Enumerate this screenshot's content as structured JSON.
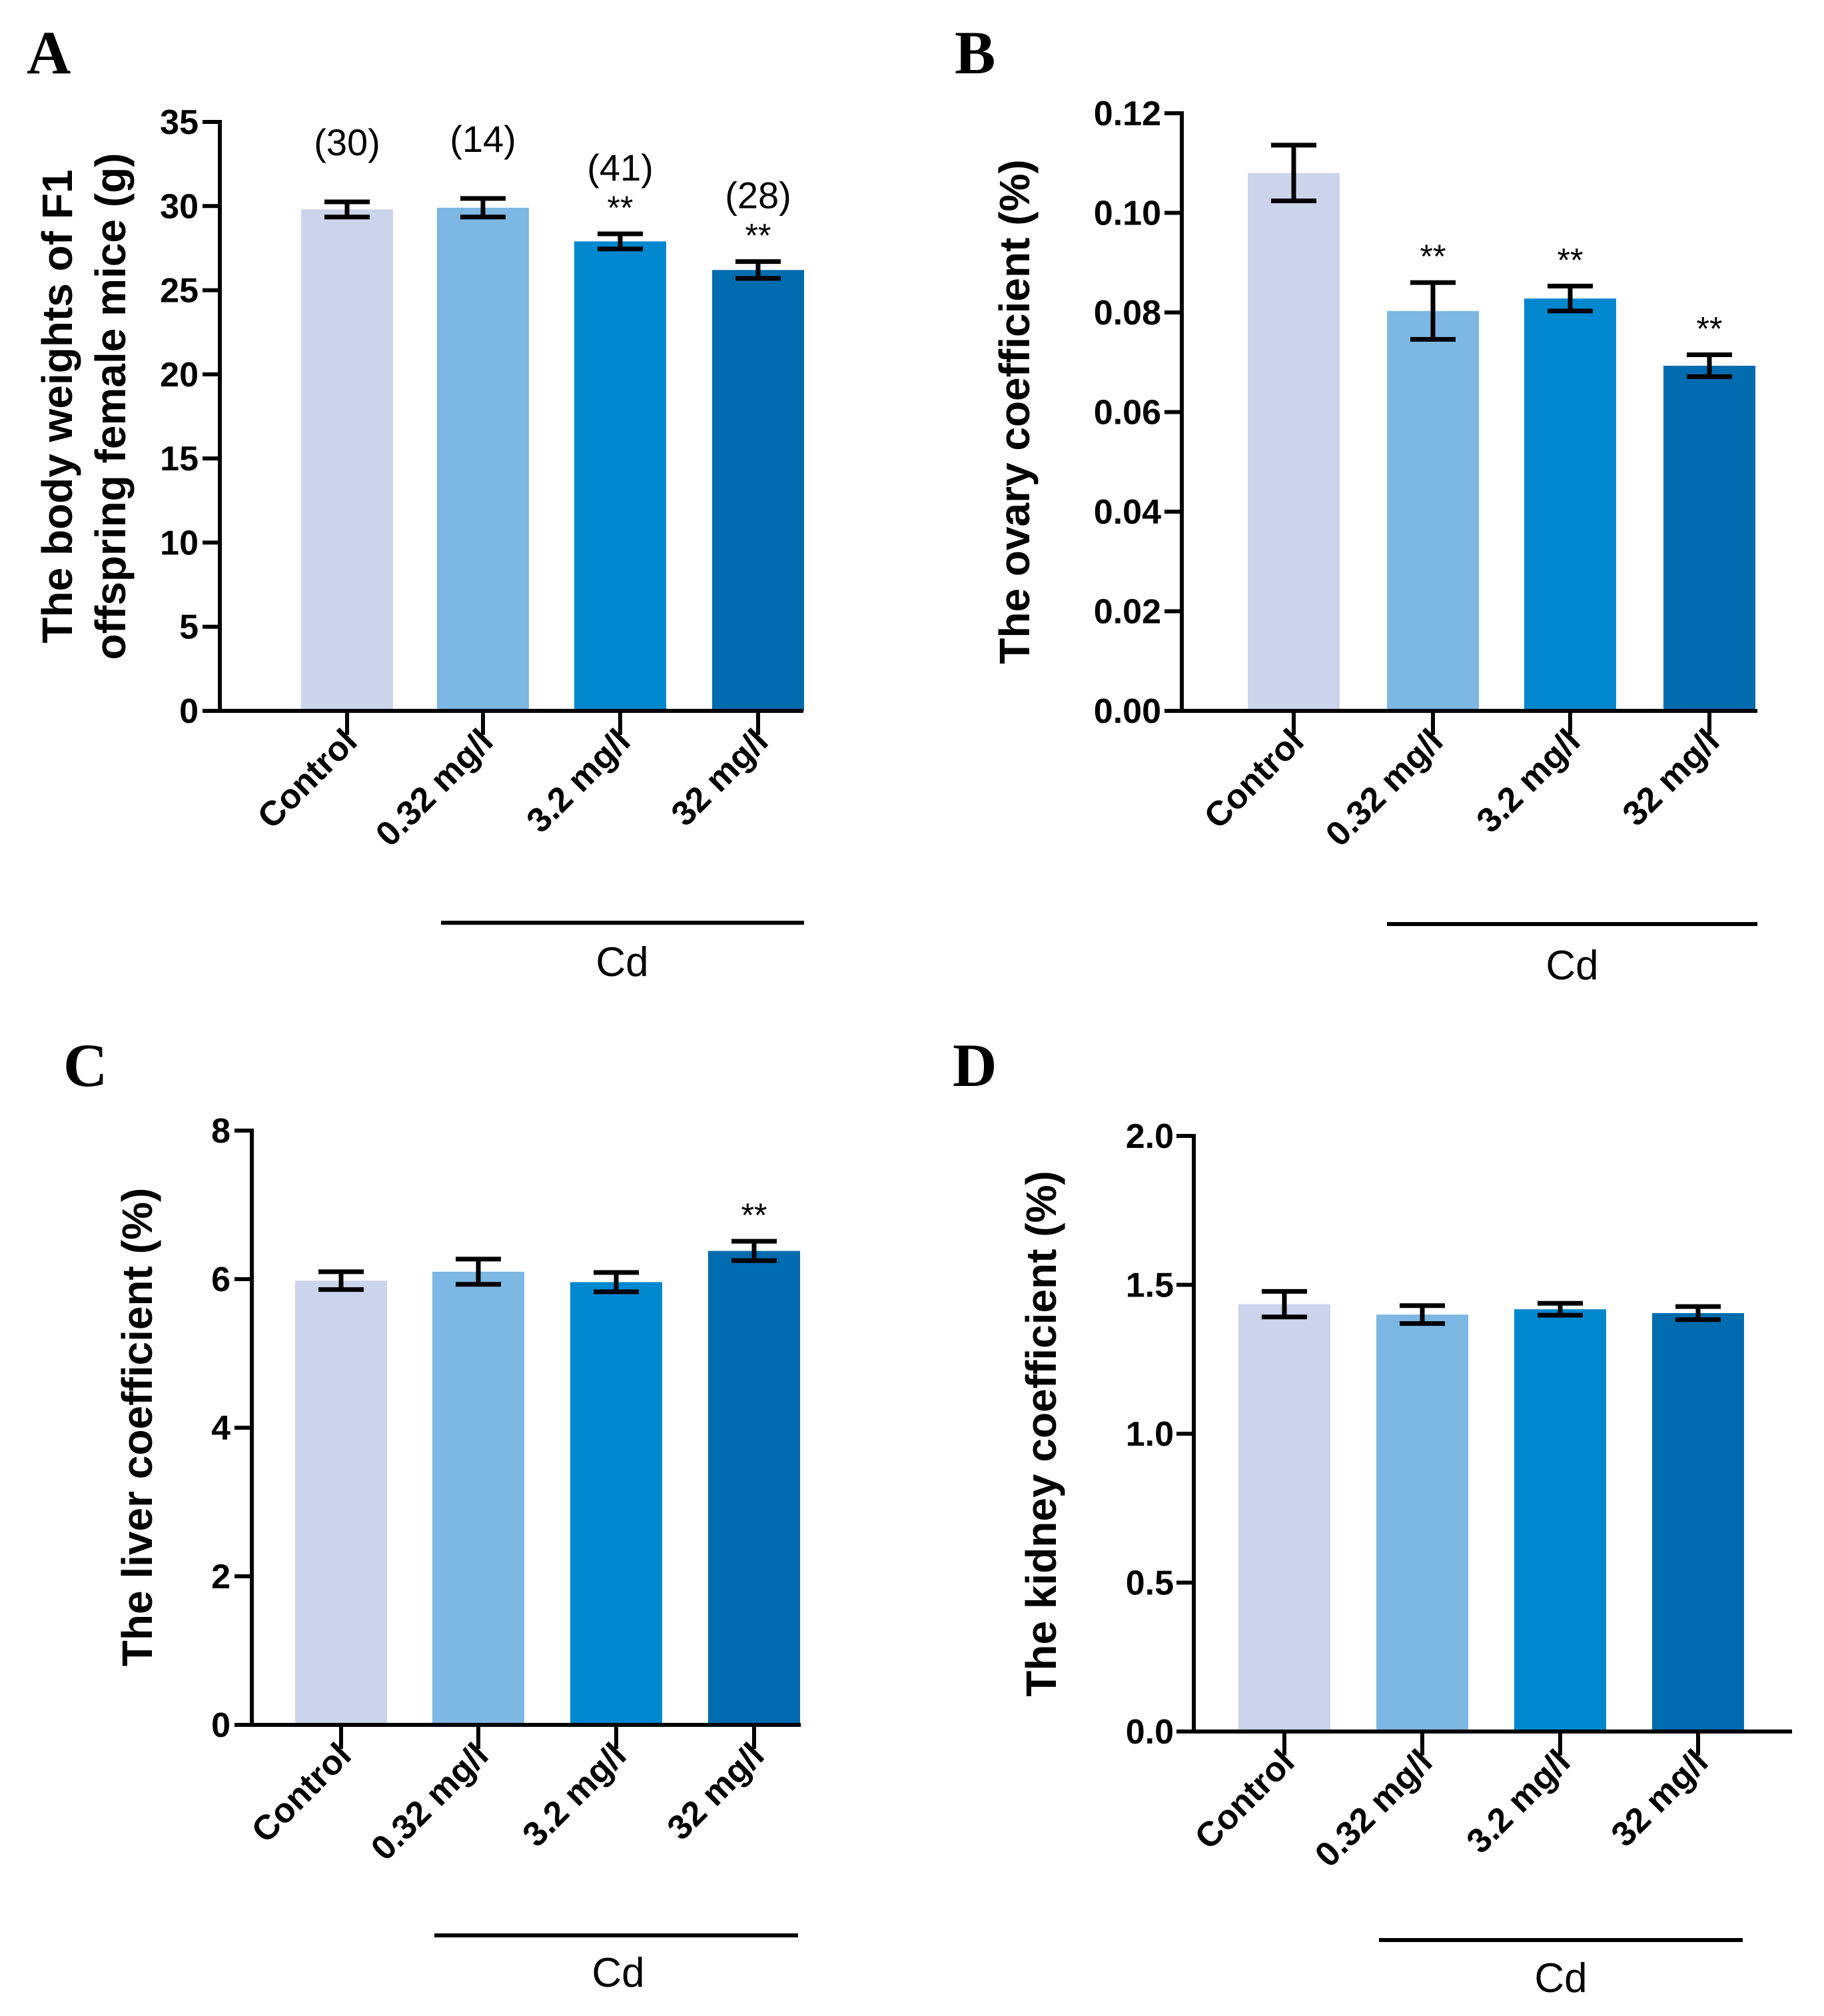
{
  "colors": {
    "control": "#CCD4EC",
    "low": "#7DB7E3",
    "mid": "#0088CF",
    "high": "#006CB0",
    "axis": "#000000"
  },
  "chart_data": [
    {
      "panel": "A",
      "type": "bar",
      "ylabel": [
        "The body weights of F1",
        "offspring female mice (g)"
      ],
      "categories": [
        "Control",
        "0.32 mg/l",
        "3.2 mg/l",
        "32 mg/l"
      ],
      "values": [
        29.8,
        29.9,
        27.9,
        26.2
      ],
      "errors": [
        0.45,
        0.55,
        0.45,
        0.5
      ],
      "sample_sizes": [
        "(30)",
        "(14)",
        "(41)",
        "(28)"
      ],
      "significance": [
        "",
        "",
        "**",
        "**"
      ],
      "ylim": [
        0,
        35
      ],
      "yticks": [
        0,
        5,
        10,
        15,
        20,
        25,
        30,
        35
      ],
      "ytick_labels": [
        "0",
        "5",
        "10",
        "15",
        "20",
        "25",
        "30",
        "35"
      ],
      "group_label": "Cd"
    },
    {
      "panel": "B",
      "type": "bar",
      "ylabel": [
        "The ovary coefficient (%)"
      ],
      "categories": [
        "Control",
        "0.32 mg/l",
        "3.2 mg/l",
        "32 mg/l"
      ],
      "values": [
        0.108,
        0.0803,
        0.0828,
        0.0693
      ],
      "errors": [
        0.0056,
        0.0057,
        0.0025,
        0.0022
      ],
      "significance": [
        "",
        "**",
        "**",
        "**"
      ],
      "ylim": [
        0,
        0.12
      ],
      "yticks": [
        0,
        0.02,
        0.04,
        0.06,
        0.08,
        0.1,
        0.12
      ],
      "ytick_labels": [
        "0.00",
        "0.02",
        "0.04",
        "0.06",
        "0.08",
        "0.10",
        "0.12"
      ],
      "group_label": "Cd"
    },
    {
      "panel": "C",
      "type": "bar",
      "ylabel": [
        "The liver coefficient (%)"
      ],
      "categories": [
        "Control",
        "0.32 mg/l",
        "3.2 mg/l",
        "32 mg/l"
      ],
      "values": [
        5.98,
        6.1,
        5.96,
        6.38
      ],
      "errors": [
        0.12,
        0.17,
        0.13,
        0.13
      ],
      "significance": [
        "",
        "",
        "",
        "**"
      ],
      "ylim": [
        0,
        8
      ],
      "yticks": [
        0,
        2,
        4,
        6,
        8
      ],
      "ytick_labels": [
        "0",
        "2",
        "4",
        "6",
        "8"
      ],
      "group_label": "Cd"
    },
    {
      "panel": "D",
      "type": "bar",
      "ylabel": [
        "The kidney coefficient (%)"
      ],
      "categories": [
        "Control",
        "0.32 mg/l",
        "3.2 mg/l",
        "32 mg/l"
      ],
      "values": [
        1.435,
        1.4,
        1.418,
        1.405
      ],
      "errors": [
        0.043,
        0.03,
        0.02,
        0.022
      ],
      "significance": [
        "",
        "",
        "",
        ""
      ],
      "ylim": [
        0,
        2
      ],
      "yticks": [
        0,
        0.5,
        1,
        1.5,
        2
      ],
      "ytick_labels": [
        "0.0",
        "0.5",
        "1.0",
        "1.5",
        "2.0"
      ],
      "group_label": "Cd"
    }
  ]
}
